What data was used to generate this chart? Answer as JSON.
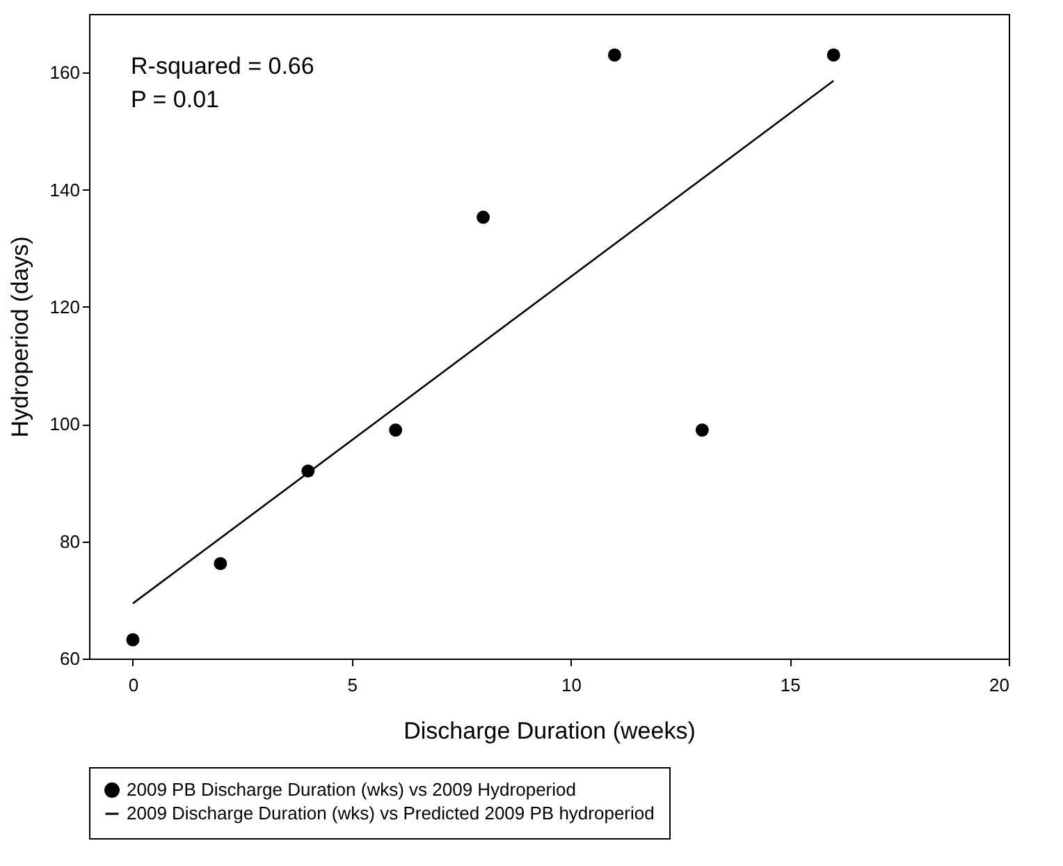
{
  "chart_data": {
    "type": "scatter",
    "xlabel": "Discharge Duration (weeks)",
    "ylabel": "Hydroperiod (days)",
    "xlim": [
      -1,
      20
    ],
    "ylim": [
      60,
      170
    ],
    "xticks": [
      0,
      5,
      10,
      15,
      20
    ],
    "yticks": [
      60,
      80,
      100,
      120,
      140,
      160
    ],
    "grid": false,
    "legend": "bottom",
    "series": [
      {
        "name": "2009 PB Discharge Duration (wks) vs 2009 Hydroperiod",
        "marker": "circle",
        "color": "#000000",
        "x": [
          0,
          2,
          4,
          6,
          8,
          11,
          13,
          16
        ],
        "values": [
          63.2,
          76.2,
          92,
          99,
          135.3,
          163,
          99,
          163
        ]
      },
      {
        "name": "2009 Discharge Duration (wks) vs Predicted 2009 PB hydroperiod",
        "type": "line",
        "color": "#000000",
        "line_style": "solid",
        "marker": "none",
        "x": [
          0,
          16
        ],
        "values": [
          69.4,
          158.6
        ]
      }
    ],
    "annotations": [
      "R-squared = 0.66",
      "P = 0.01"
    ]
  }
}
